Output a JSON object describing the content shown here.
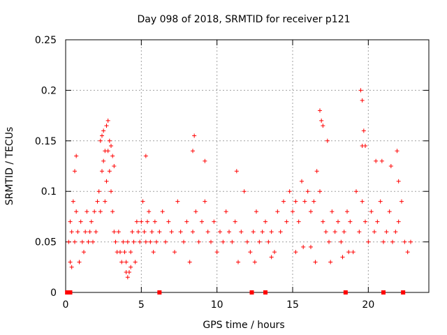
{
  "chart_data": {
    "type": "scatter",
    "title": "Day 098 of 2018, SRMTID for receiver p121",
    "xlabel": "GPS time / hours",
    "ylabel": "SRMTID / TECUs",
    "xlim": [
      0,
      24
    ],
    "ylim": [
      0,
      0.25
    ],
    "x_ticks": [
      0,
      5,
      10,
      15,
      20
    ],
    "x_tick_labels": [
      "0",
      "5",
      "10",
      "15",
      "20"
    ],
    "y_ticks": [
      0,
      0.05,
      0.1,
      0.15,
      0.2,
      0.25
    ],
    "y_tick_labels": [
      "0",
      "0.05",
      "0.1",
      "0.15",
      "0.2",
      "0.25"
    ],
    "grid": true,
    "marker": "+",
    "marker_color": "#ff0000",
    "series": [
      {
        "name": "SRMTID",
        "x": [
          0.3,
          0.4,
          0.5,
          0.6,
          0.7,
          0.8,
          0.9,
          1.0,
          1.1,
          1.2,
          1.3,
          1.4,
          1.5,
          1.6,
          1.7,
          1.8,
          1.9,
          2.0,
          2.1,
          2.2,
          2.3,
          2.4,
          2.5,
          2.6,
          2.7,
          2.8,
          2.9,
          3.0,
          3.1,
          3.2,
          3.3,
          3.4,
          3.5,
          3.6,
          3.7,
          3.8,
          3.9,
          4.0,
          4.1,
          4.2,
          4.3,
          4.4,
          4.5,
          4.6,
          4.7,
          4.8,
          4.9,
          5.0,
          5.1,
          5.2,
          5.3,
          5.4,
          5.5,
          5.6,
          5.7,
          5.8,
          5.9,
          6.0,
          6.2,
          6.4,
          6.6,
          6.8,
          7.0,
          7.2,
          7.4,
          7.6,
          7.8,
          8.0,
          8.2,
          8.4,
          8.6,
          8.8,
          9.0,
          9.2,
          9.4,
          9.6,
          9.8,
          10.0,
          10.2,
          10.4,
          10.6,
          10.8,
          11.0,
          11.2,
          11.4,
          11.6,
          11.8,
          12.0,
          12.2,
          12.4,
          12.6,
          12.8,
          13.0,
          13.2,
          13.4,
          13.6,
          13.8,
          14.0,
          14.2,
          14.4,
          14.6,
          14.8,
          15.0,
          15.2,
          15.4,
          15.6,
          15.8,
          16.0,
          16.2,
          16.4,
          16.6,
          16.8,
          17.0,
          17.2,
          17.4,
          17.6,
          17.8,
          18.0,
          18.2,
          18.4,
          18.6,
          18.8,
          19.0,
          19.2,
          19.4,
          19.6,
          19.8,
          20.0,
          20.2,
          20.4,
          20.6,
          20.8,
          21.0,
          21.2,
          21.4,
          21.6,
          21.8,
          22.0,
          22.2,
          22.4,
          22.6,
          22.8,
          2.3,
          2.5,
          2.6,
          2.8,
          2.9,
          3.0,
          3.1,
          3.2,
          2.4,
          2.7,
          0.6,
          0.7,
          5.3,
          8.5,
          8.4,
          9.2,
          11.3,
          16.8,
          16.9,
          17.3,
          17.0,
          19.5,
          19.6,
          19.7,
          19.8,
          19.6,
          20.5,
          21.9,
          20.9,
          21.5,
          22.0,
          0.2,
          0.3,
          0.4,
          4.0,
          4.1,
          4.2,
          4.3,
          12.5,
          13.6,
          15.2,
          15.7,
          16.2,
          16.5,
          17.5,
          18.3,
          18.7
        ],
        "y": [
          0.07,
          0.06,
          0.09,
          0.05,
          0.08,
          0.06,
          0.03,
          0.07,
          0.05,
          0.04,
          0.06,
          0.08,
          0.05,
          0.06,
          0.07,
          0.05,
          0.08,
          0.06,
          0.09,
          0.1,
          0.08,
          0.12,
          0.13,
          0.09,
          0.11,
          0.14,
          0.12,
          0.1,
          0.08,
          0.06,
          0.05,
          0.04,
          0.06,
          0.04,
          0.03,
          0.05,
          0.04,
          0.03,
          0.05,
          0.02,
          0.04,
          0.06,
          0.05,
          0.03,
          0.07,
          0.06,
          0.05,
          0.07,
          0.09,
          0.06,
          0.05,
          0.07,
          0.08,
          0.05,
          0.06,
          0.04,
          0.07,
          0.05,
          0.06,
          0.08,
          0.05,
          0.07,
          0.06,
          0.04,
          0.09,
          0.06,
          0.05,
          0.07,
          0.03,
          0.06,
          0.08,
          0.05,
          0.07,
          0.09,
          0.06,
          0.05,
          0.07,
          0.04,
          0.06,
          0.05,
          0.08,
          0.06,
          0.05,
          0.07,
          0.03,
          0.06,
          0.1,
          0.05,
          0.04,
          0.06,
          0.08,
          0.05,
          0.06,
          0.07,
          0.05,
          0.06,
          0.04,
          0.08,
          0.06,
          0.09,
          0.07,
          0.1,
          0.08,
          0.09,
          0.07,
          0.11,
          0.09,
          0.1,
          0.08,
          0.09,
          0.12,
          0.1,
          0.07,
          0.06,
          0.05,
          0.08,
          0.06,
          0.07,
          0.05,
          0.06,
          0.08,
          0.07,
          0.04,
          0.1,
          0.06,
          0.09,
          0.07,
          0.05,
          0.08,
          0.06,
          0.07,
          0.09,
          0.05,
          0.06,
          0.08,
          0.05,
          0.06,
          0.07,
          0.09,
          0.05,
          0.04,
          0.05,
          0.15,
          0.16,
          0.14,
          0.17,
          0.15,
          0.145,
          0.135,
          0.125,
          0.155,
          0.165,
          0.12,
          0.135,
          0.135,
          0.155,
          0.14,
          0.13,
          0.12,
          0.18,
          0.17,
          0.15,
          0.165,
          0.2,
          0.19,
          0.16,
          0.145,
          0.145,
          0.13,
          0.14,
          0.13,
          0.125,
          0.11,
          0.05,
          0.03,
          0.025,
          0.02,
          0.015,
          0.02,
          0.025,
          0.03,
          0.035,
          0.04,
          0.045,
          0.045,
          0.03,
          0.03,
          0.035,
          0.04
        ]
      }
    ],
    "x_axis_markers": {
      "name": "bottom-markers",
      "y": 0,
      "x": [
        0.1,
        0.2,
        0.3,
        6.2,
        12.3,
        13.2,
        18.5,
        21.0,
        22.3
      ]
    }
  }
}
